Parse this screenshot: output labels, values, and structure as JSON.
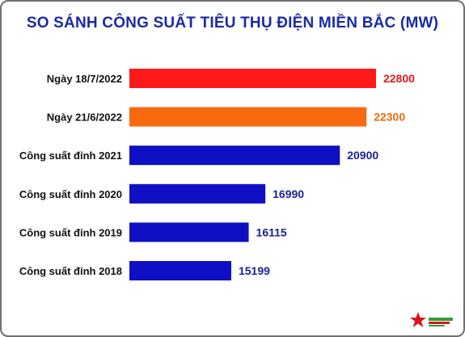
{
  "chart_data": {
    "type": "bar",
    "orientation": "horizontal",
    "title": "SO SÁNH CÔNG SUẤT TIÊU THỤ ĐIỆN MIỀN BẮC (MW)",
    "categories": [
      "Ngày 18/7/2022",
      "Ngày 21/6/2022",
      "Công suất đỉnh 2021",
      "Công suất đỉnh 2020",
      "Công suất đỉnh 2019",
      "Công suất đỉnh 2018"
    ],
    "values": [
      22800,
      22300,
      20900,
      16990,
      16115,
      15199
    ],
    "value_labels": [
      "22800",
      "22300",
      "20900",
      "16990",
      "16115",
      "15199"
    ],
    "colors": [
      "#ff1a1a",
      "#f96a10",
      "#0f0fc4",
      "#0f0fc4",
      "#0f0fc4",
      "#0f0fc4"
    ],
    "label_colors": [
      "#e31b1b",
      "#ee6a12",
      "#1a2396",
      "#1a2396",
      "#1a2396",
      "#1a2396"
    ],
    "xlim": [
      9850,
      23400
    ],
    "grid": false,
    "legend": "none"
  },
  "colors": {
    "title": "#1a2ba6",
    "frame": "#6f6f6f"
  },
  "logo": {
    "icon": "red-star-logo-icon"
  }
}
